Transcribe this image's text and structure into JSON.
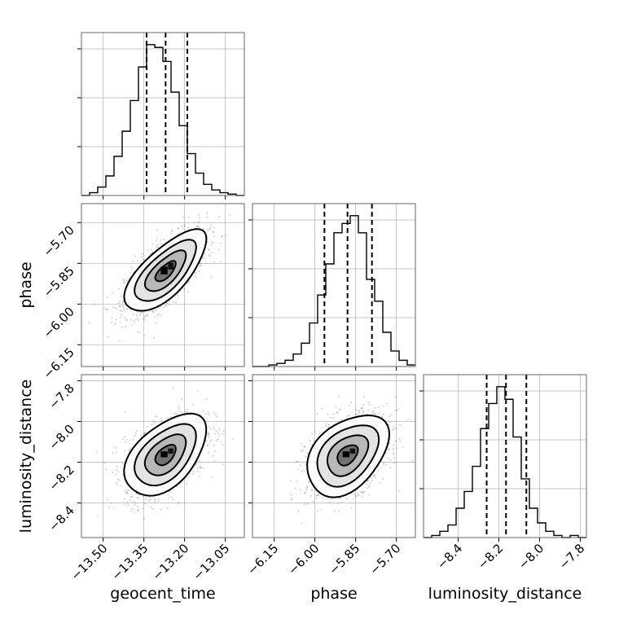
{
  "chart_data": {
    "type": "corner",
    "parameters": [
      {
        "name": "geocent_time",
        "label": "geocent_time",
        "range": [
          -13.58,
          -12.98
        ],
        "ticks": [
          -13.5,
          -13.35,
          -13.2,
          -13.05
        ],
        "tick_labels": [
          "−13.50",
          "−13.35",
          "−13.20",
          "−13.05"
        ],
        "quantiles": [
          -13.34,
          -13.27,
          -13.19
        ],
        "hist_edges_start": -13.58,
        "hist_bin_width": 0.03,
        "hist_counts": [
          0,
          2,
          6,
          14,
          28,
          46,
          68,
          92,
          108,
          106,
          96,
          74,
          50,
          30,
          16,
          8,
          4,
          2,
          1,
          0
        ]
      },
      {
        "name": "phase",
        "label": "phase",
        "range": [
          -6.23,
          -5.63
        ],
        "ticks": [
          -6.15,
          -6.0,
          -5.85,
          -5.7
        ],
        "tick_labels": [
          "−6.15",
          "−6.00",
          "−5.85",
          "−5.70"
        ],
        "quantiles": [
          -5.965,
          -5.88,
          -5.79
        ],
        "hist_edges_start": -6.23,
        "hist_bin_width": 0.03,
        "hist_counts": [
          0,
          0,
          1,
          2,
          4,
          8,
          15,
          28,
          46,
          66,
          86,
          92,
          97,
          86,
          56,
          42,
          22,
          10,
          4,
          1
        ]
      },
      {
        "name": "luminosity_distance",
        "label": "luminosity_distance",
        "range": [
          -8.57,
          -7.77
        ],
        "ticks": [
          -8.4,
          -8.2,
          -8.0,
          -7.8
        ],
        "tick_labels": [
          "−8.4",
          "−8.2",
          "−8.0",
          "−7.8"
        ],
        "quantiles": [
          -8.26,
          -8.165,
          -8.065
        ],
        "hist_edges_start": -8.57,
        "hist_bin_width": 0.04,
        "hist_counts": [
          0,
          1,
          3,
          6,
          14,
          22,
          34,
          52,
          64,
          72,
          66,
          48,
          28,
          14,
          7,
          3,
          1,
          0,
          1,
          0
        ]
      }
    ],
    "correlations": {
      "phase|geocent_time": 0.7,
      "luminosity_distance|geocent_time": 0.5,
      "luminosity_distance|phase": 0.4
    },
    "sigmas": {
      "geocent_time": 0.075,
      "phase": 0.075,
      "luminosity_distance": 0.1
    },
    "contour_levels_sigma": [
      0.5,
      1.0,
      1.5,
      2.0
    ],
    "grid": true,
    "colors": {
      "line": "#000000",
      "points": "#555555",
      "grid": "#b0b0b0",
      "frame": "#666666"
    }
  }
}
